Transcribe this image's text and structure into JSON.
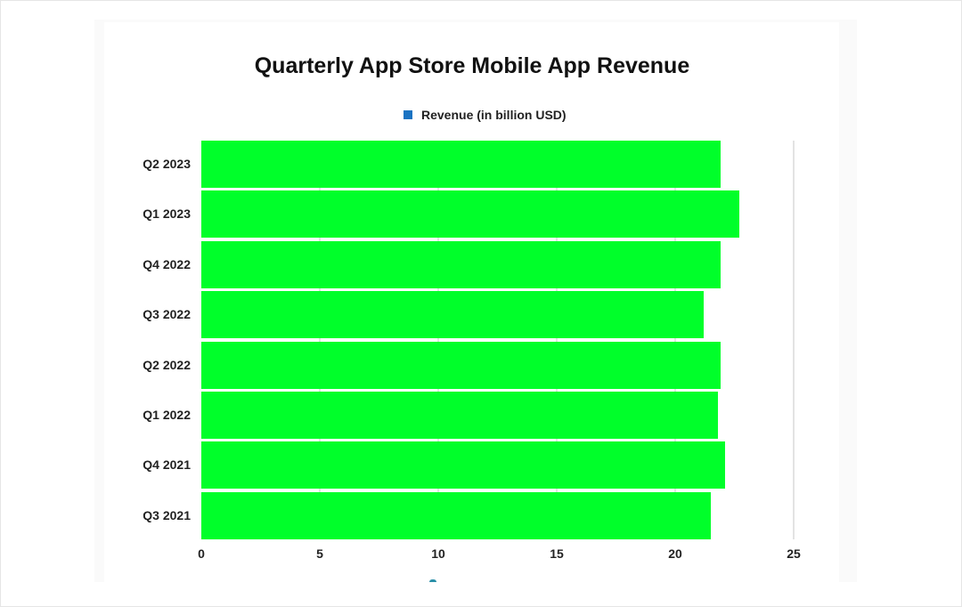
{
  "chart_data": {
    "type": "bar",
    "orientation": "horizontal",
    "title": "Quarterly App Store Mobile App Revenue",
    "categories": [
      "Q2 2023",
      "Q1 2023",
      "Q4 2022",
      "Q3 2022",
      "Q2 2022",
      "Q1 2022",
      "Q4 2021",
      "Q3 2021"
    ],
    "series": [
      {
        "name": "Revenue (in billion USD)",
        "values": [
          21.9,
          22.7,
          21.9,
          21.2,
          21.9,
          21.8,
          22.1,
          21.5
        ],
        "color": "#00ff2a",
        "legend_color": "#1a73c2"
      }
    ],
    "xlabel": "",
    "ylabel": "",
    "xlim": [
      0,
      25
    ],
    "xticks": [
      "0",
      "5",
      "10",
      "15",
      "20",
      "25"
    ],
    "grid": true,
    "legend_position": "top"
  },
  "legend": {
    "label": "Revenue (in billion USD)"
  }
}
